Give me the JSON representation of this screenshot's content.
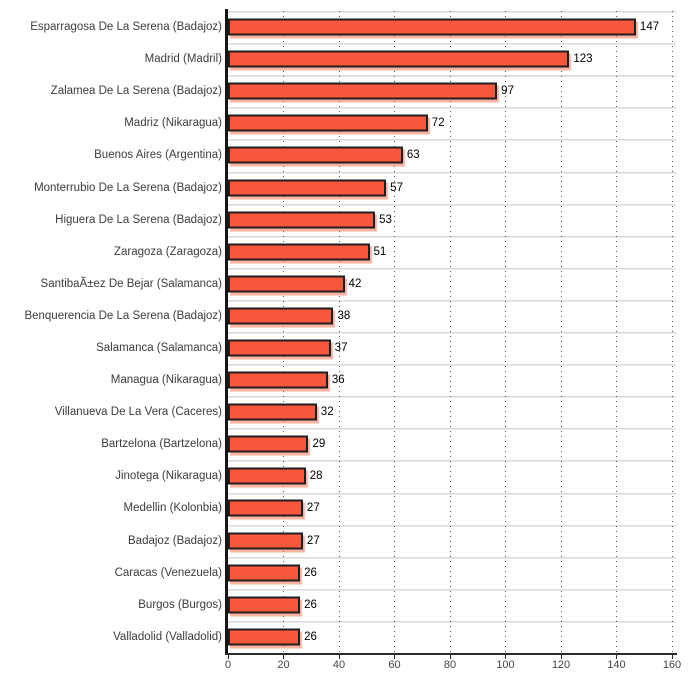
{
  "chart": {
    "title": ""
  },
  "chart_data": {
    "type": "bar",
    "orientation": "horizontal",
    "categories": [
      "Esparragosa De La Serena (Badajoz)",
      "Madrid (Madril)",
      "Zalamea De La Serena (Badajoz)",
      "Madriz (Nikaragua)",
      "Buenos Aires (Argentina)",
      "Monterrubio De La Serena (Badajoz)",
      "Higuera De La Serena (Badajoz)",
      "Zaragoza (Zaragoza)",
      "SantibaÃ±ez De Bejar (Salamanca)",
      "Benquerencia De La Serena (Badajoz)",
      "Salamanca (Salamanca)",
      "Managua (Nikaragua)",
      "Villanueva De La Vera (Caceres)",
      "Bartzelona (Bartzelona)",
      "Jinotega (Nikaragua)",
      "Medellin (Kolonbia)",
      "Badajoz (Badajoz)",
      "Caracas (Venezuela)",
      "Burgos (Burgos)",
      "Valladolid (Valladolid)"
    ],
    "values": [
      147,
      123,
      97,
      72,
      63,
      57,
      53,
      51,
      42,
      38,
      37,
      36,
      32,
      29,
      28,
      27,
      27,
      26,
      26,
      26
    ],
    "xlabel": "",
    "ylabel": "",
    "xlim": [
      0,
      160
    ],
    "x_ticks": [
      0,
      20,
      40,
      60,
      80,
      100,
      120,
      140,
      160
    ],
    "grid": true,
    "legend_position": "none",
    "colors": {
      "bar_fill": "#f8563d",
      "bar_border": "#1f1f1f",
      "bar_shadow": "rgba(245, 100, 70, 0.5)",
      "y_axis": "#151515",
      "x_axis": "#2a2a2a",
      "gridline": "#555555",
      "row_separator": "#dddddd",
      "category_label": "#3c3c3c",
      "tick_label": "#444444",
      "value_label": "#000000"
    }
  }
}
